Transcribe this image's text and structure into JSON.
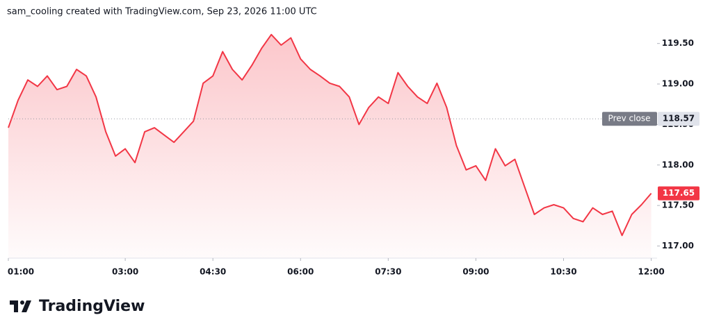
{
  "header": "sam_cooling created with TradingView.com, Sep 23, 2026 11:00 UTC",
  "logo": "TradingView",
  "chart_data": {
    "type": "line",
    "x": [
      60,
      70,
      80,
      90,
      100,
      110,
      120,
      130,
      140,
      150,
      160,
      170,
      180,
      190,
      200,
      210,
      220,
      230,
      240,
      250,
      260,
      270,
      280,
      290,
      300,
      310,
      320,
      330,
      340,
      350,
      360,
      370,
      380,
      390,
      400,
      410,
      420,
      430,
      440,
      450,
      460,
      470,
      480,
      490,
      500,
      510,
      520,
      530,
      540,
      550,
      560,
      570,
      580,
      590,
      600,
      610,
      620,
      630,
      640,
      650,
      660,
      670,
      680,
      690,
      700,
      710,
      720
    ],
    "series": [
      {
        "name": "Price",
        "color": "#f23645",
        "values": [
          118.46,
          118.8,
          119.05,
          118.97,
          119.1,
          118.93,
          118.97,
          119.18,
          119.1,
          118.84,
          118.41,
          118.11,
          118.2,
          118.03,
          118.41,
          118.46,
          118.37,
          118.28,
          118.41,
          118.54,
          119.01,
          119.1,
          119.4,
          119.18,
          119.05,
          119.23,
          119.44,
          119.61,
          119.48,
          119.57,
          119.31,
          119.18,
          119.1,
          119.01,
          118.97,
          118.84,
          118.5,
          118.71,
          118.84,
          118.76,
          119.14,
          118.97,
          118.84,
          118.76,
          119.01,
          118.71,
          118.24,
          117.94,
          117.99,
          117.81,
          118.2,
          117.99,
          118.07,
          117.73,
          117.39,
          117.47,
          117.51,
          117.47,
          117.34,
          117.3,
          117.47,
          117.39,
          117.43,
          117.13,
          117.39,
          117.51,
          117.65
        ]
      }
    ],
    "xlim": [
      60,
      726
    ],
    "xticks": [
      {
        "value": 60,
        "label": "01:00"
      },
      {
        "value": 180,
        "label": "03:00"
      },
      {
        "value": 270,
        "label": "04:30"
      },
      {
        "value": 360,
        "label": "06:00"
      },
      {
        "value": 450,
        "label": "07:30"
      },
      {
        "value": 540,
        "label": "09:00"
      },
      {
        "value": 630,
        "label": "10:30"
      },
      {
        "value": 720,
        "label": "12:00"
      }
    ],
    "ylim": [
      116.85,
      119.78
    ],
    "yticks": [
      {
        "value": 117,
        "label": "117.00"
      },
      {
        "value": 117.5,
        "label": "117.50"
      },
      {
        "value": 118,
        "label": "118.00"
      },
      {
        "value": 118.5,
        "label": "118.50"
      },
      {
        "value": 119,
        "label": "119.00"
      },
      {
        "value": 119.5,
        "label": "119.50"
      }
    ],
    "prev_close": {
      "label": "Prev close",
      "value": 118.57
    }
  }
}
